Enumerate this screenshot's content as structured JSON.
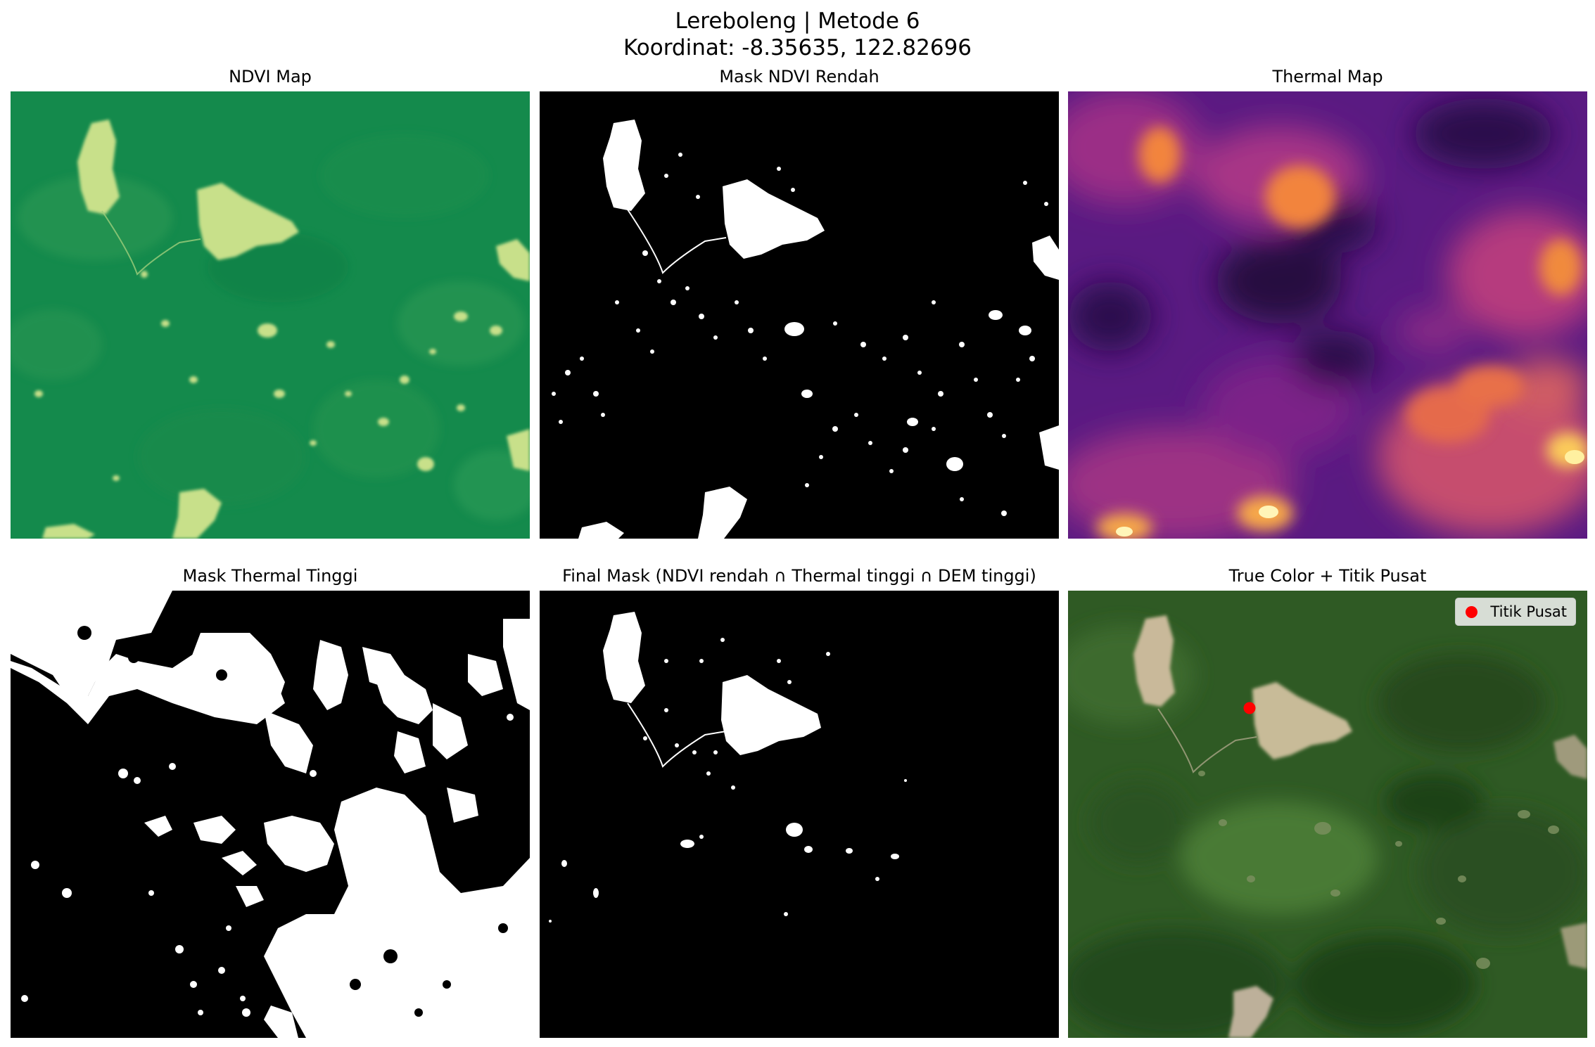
{
  "figure": {
    "title_line1": "Lereboleng | Metode 6",
    "title_line2": "Koordinat: -8.35635, 122.82696"
  },
  "panels": [
    {
      "title": "NDVI Map"
    },
    {
      "title": "Mask NDVI Rendah"
    },
    {
      "title": "Thermal Map"
    },
    {
      "title": "Mask Thermal Tinggi"
    },
    {
      "title": "Final Mask (NDVI rendah ∩ Thermal tinggi ∩ DEM tinggi)"
    },
    {
      "title": "True Color + Titik Pusat"
    }
  ],
  "legend": {
    "label": "Titik Pusat",
    "color": "#ff0000"
  },
  "colors": {
    "ndvi_base": "#148a4c",
    "ndvi_low": "#c8e08a",
    "thermal_dark": "#1e0a3a",
    "thermal_mid": "#5a1a82",
    "thermal_hot": "#f7a84a",
    "mask_on": "#ffffff",
    "mask_off": "#000000",
    "truecolor_forest": "#2f5a24",
    "truecolor_clearing": "#c9b99a"
  }
}
